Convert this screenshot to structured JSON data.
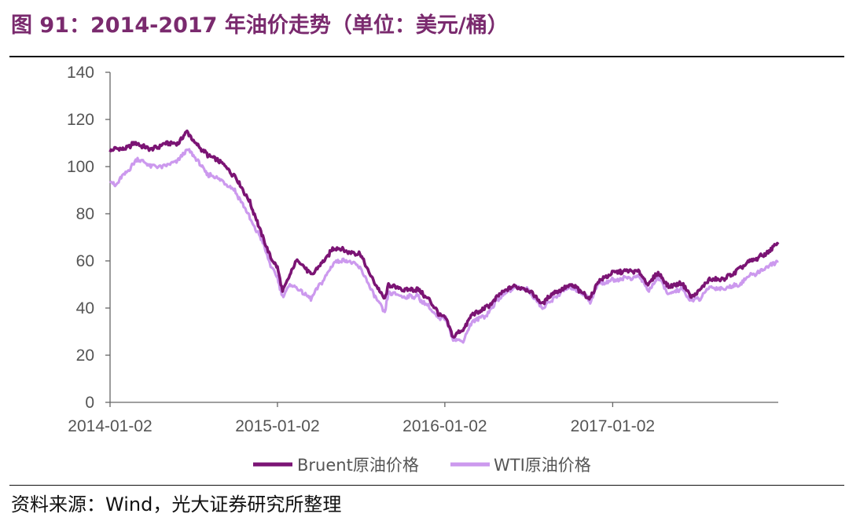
{
  "header": {
    "title": "图 91：2014-2017 年油价走势（单位：美元/桶）"
  },
  "footer": {
    "source": "资料来源：Wind，光大证券研究所整理"
  },
  "colors": {
    "bruent": "#7b1474",
    "wti": "#cc99ee",
    "title": "#7a2a6e"
  },
  "chart_data": {
    "type": "line",
    "title": "",
    "xlabel": "",
    "ylabel": "",
    "ylim": [
      0,
      140
    ],
    "yticks": [
      "0",
      "20",
      "40",
      "60",
      "80",
      "100",
      "120",
      "140"
    ],
    "xticks": [
      "2014-01-02",
      "2015-01-02",
      "2016-01-02",
      "2017-01-02"
    ],
    "xrange": [
      "2014-01-02",
      "2017-12-29"
    ],
    "grid": false,
    "legend_position": "bottom",
    "series": [
      {
        "name": "Bruent原油价格",
        "points": [
          [
            "2014-01-02",
            107
          ],
          [
            "2014-02-03",
            108
          ],
          [
            "2014-03-03",
            110
          ],
          [
            "2014-04-01",
            107
          ],
          [
            "2014-05-01",
            110
          ],
          [
            "2014-06-02",
            110
          ],
          [
            "2014-06-19",
            115
          ],
          [
            "2014-07-01",
            111
          ],
          [
            "2014-08-01",
            105
          ],
          [
            "2014-09-01",
            102
          ],
          [
            "2014-10-01",
            96
          ],
          [
            "2014-11-03",
            85
          ],
          [
            "2014-12-01",
            70
          ],
          [
            "2014-12-22",
            60
          ],
          [
            "2015-01-02",
            57
          ],
          [
            "2015-01-13",
            47
          ],
          [
            "2015-02-02",
            56
          ],
          [
            "2015-02-16",
            61
          ],
          [
            "2015-03-16",
            54
          ],
          [
            "2015-04-15",
            60
          ],
          [
            "2015-05-06",
            66
          ],
          [
            "2015-06-01",
            64
          ],
          [
            "2015-07-01",
            63
          ],
          [
            "2015-08-03",
            50
          ],
          [
            "2015-08-24",
            44
          ],
          [
            "2015-09-01",
            50
          ],
          [
            "2015-10-01",
            48
          ],
          [
            "2015-11-02",
            48
          ],
          [
            "2015-12-01",
            43
          ],
          [
            "2015-12-21",
            37
          ],
          [
            "2016-01-04",
            36
          ],
          [
            "2016-01-20",
            28
          ],
          [
            "2016-02-11",
            31
          ],
          [
            "2016-03-01",
            37
          ],
          [
            "2016-04-01",
            40
          ],
          [
            "2016-05-02",
            46
          ],
          [
            "2016-06-01",
            49
          ],
          [
            "2016-07-01",
            48
          ],
          [
            "2016-08-02",
            42
          ],
          [
            "2016-08-31",
            47
          ],
          [
            "2016-10-03",
            50
          ],
          [
            "2016-11-01",
            46
          ],
          [
            "2016-11-14",
            44
          ],
          [
            "2016-12-01",
            51
          ],
          [
            "2017-01-03",
            55
          ],
          [
            "2017-02-01",
            56
          ],
          [
            "2017-03-01",
            55
          ],
          [
            "2017-03-22",
            50
          ],
          [
            "2017-04-11",
            55
          ],
          [
            "2017-05-04",
            49
          ],
          [
            "2017-06-01",
            51
          ],
          [
            "2017-06-21",
            45
          ],
          [
            "2017-07-10",
            47
          ],
          [
            "2017-08-01",
            52
          ],
          [
            "2017-09-01",
            52
          ],
          [
            "2017-10-02",
            56
          ],
          [
            "2017-11-01",
            60
          ],
          [
            "2017-12-01",
            63
          ],
          [
            "2017-12-29",
            67
          ]
        ]
      },
      {
        "name": "WTI原油价格",
        "points": [
          [
            "2014-01-02",
            95
          ],
          [
            "2014-01-13",
            92
          ],
          [
            "2014-02-03",
            97
          ],
          [
            "2014-03-03",
            103
          ],
          [
            "2014-04-01",
            100
          ],
          [
            "2014-05-01",
            100
          ],
          [
            "2014-06-02",
            103
          ],
          [
            "2014-06-20",
            107
          ],
          [
            "2014-07-01",
            105
          ],
          [
            "2014-08-01",
            97
          ],
          [
            "2014-09-01",
            94
          ],
          [
            "2014-10-01",
            90
          ],
          [
            "2014-11-03",
            78
          ],
          [
            "2014-12-01",
            68
          ],
          [
            "2014-12-22",
            56
          ],
          [
            "2015-01-02",
            53
          ],
          [
            "2015-01-13",
            45
          ],
          [
            "2015-02-02",
            50
          ],
          [
            "2015-03-16",
            44
          ],
          [
            "2015-04-15",
            53
          ],
          [
            "2015-05-06",
            60
          ],
          [
            "2015-06-01",
            60
          ],
          [
            "2015-07-01",
            57
          ],
          [
            "2015-08-03",
            45
          ],
          [
            "2015-08-24",
            38
          ],
          [
            "2015-09-01",
            46
          ],
          [
            "2015-10-01",
            45
          ],
          [
            "2015-11-02",
            45
          ],
          [
            "2015-12-01",
            40
          ],
          [
            "2015-12-21",
            35
          ],
          [
            "2016-01-04",
            36
          ],
          [
            "2016-01-20",
            27
          ],
          [
            "2016-02-11",
            26
          ],
          [
            "2016-03-01",
            34
          ],
          [
            "2016-04-01",
            37
          ],
          [
            "2016-05-02",
            45
          ],
          [
            "2016-06-01",
            49
          ],
          [
            "2016-07-01",
            48
          ],
          [
            "2016-08-02",
            40
          ],
          [
            "2016-08-31",
            45
          ],
          [
            "2016-10-03",
            49
          ],
          [
            "2016-11-01",
            46
          ],
          [
            "2016-11-14",
            43
          ],
          [
            "2016-12-01",
            50
          ],
          [
            "2017-01-03",
            52
          ],
          [
            "2017-02-01",
            53
          ],
          [
            "2017-03-01",
            53
          ],
          [
            "2017-03-22",
            47
          ],
          [
            "2017-04-11",
            53
          ],
          [
            "2017-05-04",
            46
          ],
          [
            "2017-06-01",
            48
          ],
          [
            "2017-06-21",
            43
          ],
          [
            "2017-07-10",
            44
          ],
          [
            "2017-08-01",
            49
          ],
          [
            "2017-09-01",
            48
          ],
          [
            "2017-10-02",
            50
          ],
          [
            "2017-11-01",
            54
          ],
          [
            "2017-12-01",
            57
          ],
          [
            "2017-12-29",
            60
          ]
        ]
      }
    ]
  }
}
